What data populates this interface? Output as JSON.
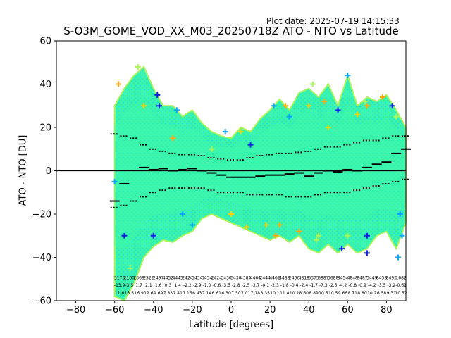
{
  "plot_date": "Plot date: 2025-07-19 14:15:33",
  "chart_data": {
    "type": "scatter",
    "title": "S-O3M_GOME_VOD_XX_M03_20250718Z ATO - NTO vs Latitude",
    "xlabel": "Latitude [degrees]",
    "ylabel": "ATO - NTO [DU]",
    "xlim": [
      -90,
      90
    ],
    "ylim": [
      -60,
      60
    ],
    "xticks": [
      -80,
      -60,
      -40,
      -20,
      0,
      20,
      40,
      60,
      80
    ],
    "yticks": [
      -60,
      -40,
      -20,
      0,
      20,
      40,
      60
    ],
    "grid": false,
    "zero_line": true,
    "marker": "plus",
    "colors": {
      "dark_blue": "#0a1ee6",
      "light_blue": "#0aa6f5",
      "cyan": "#1ee6d2",
      "aqua_green": "#3cf5aa",
      "light_green": "#aaf55a",
      "yellow": "#f5d20a",
      "orange": "#ffaa0a",
      "axis": "#000000",
      "zero_line": "#000000"
    },
    "scatter_envelope": {
      "x_range": [
        -60,
        90
      ],
      "upper": [
        {
          "x": -60,
          "y": 30
        },
        {
          "x": -55,
          "y": 38
        },
        {
          "x": -50,
          "y": 44
        },
        {
          "x": -45,
          "y": 48
        },
        {
          "x": -40,
          "y": 38
        },
        {
          "x": -35,
          "y": 30
        },
        {
          "x": -30,
          "y": 30
        },
        {
          "x": -25,
          "y": 25
        },
        {
          "x": -20,
          "y": 28
        },
        {
          "x": -15,
          "y": 22
        },
        {
          "x": -10,
          "y": 18
        },
        {
          "x": -5,
          "y": 16
        },
        {
          "x": 0,
          "y": 15
        },
        {
          "x": 5,
          "y": 20
        },
        {
          "x": 10,
          "y": 18
        },
        {
          "x": 15,
          "y": 24
        },
        {
          "x": 20,
          "y": 28
        },
        {
          "x": 25,
          "y": 33
        },
        {
          "x": 30,
          "y": 28
        },
        {
          "x": 35,
          "y": 36
        },
        {
          "x": 40,
          "y": 38
        },
        {
          "x": 45,
          "y": 34
        },
        {
          "x": 50,
          "y": 40
        },
        {
          "x": 55,
          "y": 30
        },
        {
          "x": 60,
          "y": 44
        },
        {
          "x": 65,
          "y": 30
        },
        {
          "x": 70,
          "y": 34
        },
        {
          "x": 75,
          "y": 32
        },
        {
          "x": 80,
          "y": 35
        },
        {
          "x": 85,
          "y": 28
        },
        {
          "x": 90,
          "y": 20
        }
      ],
      "lower": [
        {
          "x": -60,
          "y": -58
        },
        {
          "x": -55,
          "y": -60
        },
        {
          "x": -50,
          "y": -52
        },
        {
          "x": -45,
          "y": -40
        },
        {
          "x": -40,
          "y": -35
        },
        {
          "x": -35,
          "y": -32
        },
        {
          "x": -30,
          "y": -33
        },
        {
          "x": -25,
          "y": -30
        },
        {
          "x": -20,
          "y": -28
        },
        {
          "x": -15,
          "y": -22
        },
        {
          "x": -10,
          "y": -20
        },
        {
          "x": -5,
          "y": -22
        },
        {
          "x": 0,
          "y": -24
        },
        {
          "x": 5,
          "y": -26
        },
        {
          "x": 10,
          "y": -28
        },
        {
          "x": 15,
          "y": -30
        },
        {
          "x": 20,
          "y": -32
        },
        {
          "x": 25,
          "y": -30
        },
        {
          "x": 30,
          "y": -33
        },
        {
          "x": 35,
          "y": -30
        },
        {
          "x": 40,
          "y": -36
        },
        {
          "x": 45,
          "y": -38
        },
        {
          "x": 50,
          "y": -34
        },
        {
          "x": 55,
          "y": -38
        },
        {
          "x": 60,
          "y": -34
        },
        {
          "x": 65,
          "y": -38
        },
        {
          "x": 70,
          "y": -36
        },
        {
          "x": 75,
          "y": -30
        },
        {
          "x": 80,
          "y": -28
        },
        {
          "x": 85,
          "y": -36
        },
        {
          "x": 90,
          "y": -24
        }
      ]
    },
    "series": [
      {
        "values": [
          {
            "x": -60,
            "y": -5
          },
          {
            "x": -45,
            "y": 30
          },
          {
            "x": -30,
            "y": 15
          },
          {
            "x": -10,
            "y": 10
          },
          {
            "x": 10,
            "y": 12
          },
          {
            "x": 30,
            "y": 25
          },
          {
            "x": 50,
            "y": 20
          },
          {
            "x": 70,
            "y": 30
          },
          {
            "x": 85,
            "y": 25
          },
          {
            "x": -55,
            "y": -30
          },
          {
            "x": -25,
            "y": -20
          },
          {
            "x": 0,
            "y": -20
          },
          {
            "x": 25,
            "y": -25
          },
          {
            "x": 45,
            "y": -30
          },
          {
            "x": 70,
            "y": -30
          },
          {
            "x": 87,
            "y": -20
          }
        ]
      },
      {
        "values": [
          {
            "x": -58,
            "y": 40
          },
          {
            "x": -48,
            "y": 48
          },
          {
            "x": -38,
            "y": 35
          },
          {
            "x": -28,
            "y": 28
          },
          {
            "x": 5,
            "y": 18
          },
          {
            "x": 28,
            "y": 30
          },
          {
            "x": 42,
            "y": 40
          },
          {
            "x": 55,
            "y": 28
          },
          {
            "x": 60,
            "y": 44
          },
          {
            "x": 65,
            "y": 26
          },
          {
            "x": 78,
            "y": 34
          },
          {
            "x": -52,
            "y": -45
          },
          {
            "x": -40,
            "y": -30
          },
          {
            "x": -20,
            "y": -25
          },
          {
            "x": 18,
            "y": -25
          },
          {
            "x": 35,
            "y": -28
          },
          {
            "x": 60,
            "y": -30
          },
          {
            "x": 70,
            "y": -38
          },
          {
            "x": 88,
            "y": -30
          }
        ]
      },
      {
        "values": [
          {
            "x": -37,
            "y": 30
          },
          {
            "x": 22,
            "y": 30
          },
          {
            "x": 40,
            "y": 30
          },
          {
            "x": 48,
            "y": 32
          },
          {
            "x": 69,
            "y": 32
          },
          {
            "x": 83,
            "y": 30
          },
          {
            "x": -3,
            "y": 18
          },
          {
            "x": 8,
            "y": -26
          },
          {
            "x": 23,
            "y": -30
          },
          {
            "x": 44,
            "y": -32
          },
          {
            "x": 57,
            "y": -36
          },
          {
            "x": 86,
            "y": -40
          }
        ]
      }
    ],
    "mean_profile": [
      {
        "x": -60,
        "y": -14
      },
      {
        "x": -55,
        "y": -6
      },
      {
        "x": -45,
        "y": 1.5
      },
      {
        "x": -40,
        "y": 0.5
      },
      {
        "x": -35,
        "y": 1
      },
      {
        "x": -30,
        "y": 0
      },
      {
        "x": -25,
        "y": 0.5
      },
      {
        "x": -20,
        "y": 1
      },
      {
        "x": -15,
        "y": 0
      },
      {
        "x": -10,
        "y": -1
      },
      {
        "x": -5,
        "y": -2
      },
      {
        "x": 0,
        "y": -3
      },
      {
        "x": 5,
        "y": -3
      },
      {
        "x": 10,
        "y": -3
      },
      {
        "x": 15,
        "y": -2.5
      },
      {
        "x": 20,
        "y": -2
      },
      {
        "x": 25,
        "y": -2
      },
      {
        "x": 30,
        "y": -1.5
      },
      {
        "x": 35,
        "y": -1
      },
      {
        "x": 40,
        "y": -2.5
      },
      {
        "x": 45,
        "y": -1
      },
      {
        "x": 50,
        "y": 0
      },
      {
        "x": 55,
        "y": -0.5
      },
      {
        "x": 60,
        "y": 0.5
      },
      {
        "x": 65,
        "y": 0
      },
      {
        "x": 70,
        "y": 1.5
      },
      {
        "x": 75,
        "y": 3
      },
      {
        "x": 80,
        "y": 4
      },
      {
        "x": 85,
        "y": 8
      },
      {
        "x": 90,
        "y": 10
      }
    ],
    "std_upper": [
      {
        "x": -60,
        "y": 17
      },
      {
        "x": -55,
        "y": 16
      },
      {
        "x": -50,
        "y": 15
      },
      {
        "x": -45,
        "y": 12
      },
      {
        "x": -40,
        "y": 10
      },
      {
        "x": -35,
        "y": 9
      },
      {
        "x": -30,
        "y": 8
      },
      {
        "x": -25,
        "y": 7.5
      },
      {
        "x": -20,
        "y": 7.5
      },
      {
        "x": -15,
        "y": 7
      },
      {
        "x": -10,
        "y": 6
      },
      {
        "x": -5,
        "y": 5.5
      },
      {
        "x": 0,
        "y": 5
      },
      {
        "x": 5,
        "y": 5
      },
      {
        "x": 10,
        "y": 6
      },
      {
        "x": 15,
        "y": 7
      },
      {
        "x": 20,
        "y": 7.5
      },
      {
        "x": 25,
        "y": 8
      },
      {
        "x": 30,
        "y": 8
      },
      {
        "x": 35,
        "y": 8.5
      },
      {
        "x": 40,
        "y": 9
      },
      {
        "x": 45,
        "y": 10
      },
      {
        "x": 50,
        "y": 11
      },
      {
        "x": 55,
        "y": 11
      },
      {
        "x": 60,
        "y": 12
      },
      {
        "x": 65,
        "y": 13
      },
      {
        "x": 70,
        "y": 14
      },
      {
        "x": 75,
        "y": 14
      },
      {
        "x": 80,
        "y": 15
      },
      {
        "x": 85,
        "y": 16
      },
      {
        "x": 90,
        "y": 16
      }
    ],
    "std_lower": [
      {
        "x": -60,
        "y": -17
      },
      {
        "x": -55,
        "y": -16
      },
      {
        "x": -50,
        "y": -14
      },
      {
        "x": -45,
        "y": -12
      },
      {
        "x": -40,
        "y": -10
      },
      {
        "x": -35,
        "y": -9
      },
      {
        "x": -30,
        "y": -8
      },
      {
        "x": -25,
        "y": -8
      },
      {
        "x": -20,
        "y": -8
      },
      {
        "x": -15,
        "y": -8
      },
      {
        "x": -10,
        "y": -9
      },
      {
        "x": -5,
        "y": -10
      },
      {
        "x": 0,
        "y": -10
      },
      {
        "x": 5,
        "y": -10
      },
      {
        "x": 10,
        "y": -11
      },
      {
        "x": 15,
        "y": -11
      },
      {
        "x": 20,
        "y": -11
      },
      {
        "x": 25,
        "y": -11
      },
      {
        "x": 30,
        "y": -12
      },
      {
        "x": 35,
        "y": -12
      },
      {
        "x": 40,
        "y": -12
      },
      {
        "x": 45,
        "y": -11
      },
      {
        "x": 50,
        "y": -10
      },
      {
        "x": 55,
        "y": -10
      },
      {
        "x": 60,
        "y": -10
      },
      {
        "x": 65,
        "y": -9
      },
      {
        "x": 70,
        "y": -8
      },
      {
        "x": 75,
        "y": -7
      },
      {
        "x": 80,
        "y": -6
      },
      {
        "x": 85,
        "y": -5
      },
      {
        "x": 90,
        "y": -4
      }
    ],
    "bin_annotations": {
      "rows_y": [
        -50,
        -53.5,
        -57
      ],
      "bins_x": [
        -57.5,
        -52.5,
        -47.5,
        -42.5,
        -37.5,
        -32.5,
        -27.5,
        -22.5,
        -17.5,
        -12.5,
        -7.5,
        -2.5,
        2.5,
        7.5,
        12.5,
        17.5,
        22.5,
        27.5,
        32.5,
        37.5,
        42.5,
        47.5,
        52.5,
        57.5,
        62.5,
        67.5,
        72.5,
        77.5,
        82.5,
        87.5
      ],
      "counts": [
        "3173",
        "2160",
        "2368",
        "2522",
        "2497",
        "4452",
        "4445",
        "2424",
        "3434",
        "3434",
        "2424",
        "3430",
        "3430",
        "4384",
        "4464",
        "2444",
        "4462",
        "4488",
        "2466",
        "4818",
        "5375",
        "5887",
        "3688",
        "8454",
        "4848",
        "8487",
        "3449",
        "8458",
        "8493",
        "1682"
      ],
      "means": [
        "-13.9",
        "-3.5",
        "1.7",
        "2.1",
        "1.6",
        "0.3",
        "1.4",
        "-2.2",
        "-2.9",
        "-1.0",
        "-0.6",
        "-3.5",
        "-2.8",
        "-2.5",
        "-3.7",
        "-0.1",
        "-2.3",
        "-1.8",
        "-0.4",
        "-2.4",
        "-1.7",
        "-7.3",
        "-2.5",
        "-4.2",
        "-0.8",
        "-0.9",
        "-4.2",
        "-3.5",
        "-3.2",
        "-0.61"
      ],
      "stds": [
        "11.6",
        "18.5",
        "16.9",
        "12.6",
        "9.69",
        "7.83",
        "7.41",
        "7.15",
        "6.43",
        "7.14",
        "6.61",
        "6.30",
        "7.50",
        "7.01",
        "7.18",
        "8.35",
        "10.1",
        "11.4",
        "10.2",
        "8.60",
        "8.89",
        "10.5",
        "10.5",
        "9.66",
        "8.71",
        "8.80",
        "10.2",
        "6.58",
        "9.31",
        "10.52"
      ]
    }
  }
}
